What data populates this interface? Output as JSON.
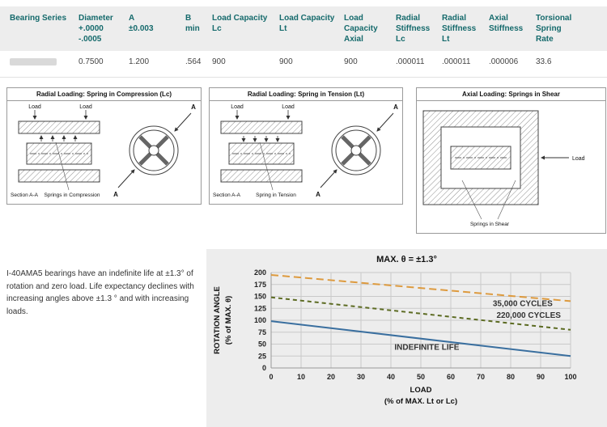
{
  "table": {
    "headers": [
      "Bearing Series",
      "Diameter\n+.0000\n-.0005",
      "A\n±0.003",
      "B\nmin",
      "Load Capacity\nLc",
      "Load Capacity\nLt",
      "Load Capacity\nAxial",
      "Radial\nStiffness\nLc",
      "Radial\nStiffness\nLt",
      "Axial\nStiffness",
      "Torsional\nSpring\nRate"
    ],
    "row": [
      "",
      "0.7500",
      "1.200",
      ".564",
      "900",
      "900",
      "900",
      ".000011",
      ".000011",
      ".000006",
      "33.6"
    ]
  },
  "diagrams": [
    {
      "title": "Radial Loading: Spring in Compression (Lc)",
      "load_left": "Load",
      "load_right": "Load",
      "section": "Section A-A",
      "spring_label": "Springs in Compression",
      "a_top": "A",
      "a_bottom": "A"
    },
    {
      "title": "Radial Loading: Spring in Tension (Lt)",
      "load_left": "Load",
      "load_right": "Load",
      "section": "Section A-A",
      "spring_label": "Spring in Tension",
      "a_top": "A",
      "a_bottom": "A"
    },
    {
      "title": "Axial Loading: Springs in Shear",
      "load": "Load",
      "spring_label": "Springs in Shear"
    }
  ],
  "note": "I-40AMA5  bearings have an indefinite life at ±1.3° of rotation and zero load.  Life expectancy declines with increasing angles above ±1.3 ° and with increasing loads.",
  "colors": {
    "header_text": "#156a6c",
    "header_bg": "#ededed",
    "panel_bg": "#ededed",
    "indefinite_life_line": "#3a6f9f",
    "cycles_35000_line": "#dd9a3e",
    "cycles_220000_line": "#5c6b22"
  },
  "chart_data": {
    "type": "line",
    "title": "MAX. θ = ±1.3°",
    "xlabel": "LOAD",
    "xlabel2": "(% of MAX. Lt or Lc)",
    "ylabel": "ROTATION ANGLE",
    "ylabel2": "(% of MAX. θ)",
    "xlim": [
      0,
      100
    ],
    "ylim": [
      0,
      200
    ],
    "xticks": 10,
    "yticks": 25,
    "grid": true,
    "legend_position": "inline-annotations",
    "series": [
      {
        "name": "35,000 CYCLES",
        "color": "#dd9a3e",
        "dash": "9 5",
        "points": [
          [
            0,
            195
          ],
          [
            100,
            140
          ]
        ],
        "label_at": [
          84,
          130
        ]
      },
      {
        "name": "220,000 CYCLES",
        "color": "#5c6b22",
        "dash": "5 4",
        "points": [
          [
            0,
            148
          ],
          [
            100,
            80
          ]
        ],
        "label_at": [
          86,
          105
        ]
      },
      {
        "name": "INDEFINITE LIFE",
        "color": "#3a6f9f",
        "dash": "",
        "points": [
          [
            0,
            98
          ],
          [
            100,
            25
          ]
        ],
        "label_at": [
          52,
          38
        ]
      }
    ]
  }
}
